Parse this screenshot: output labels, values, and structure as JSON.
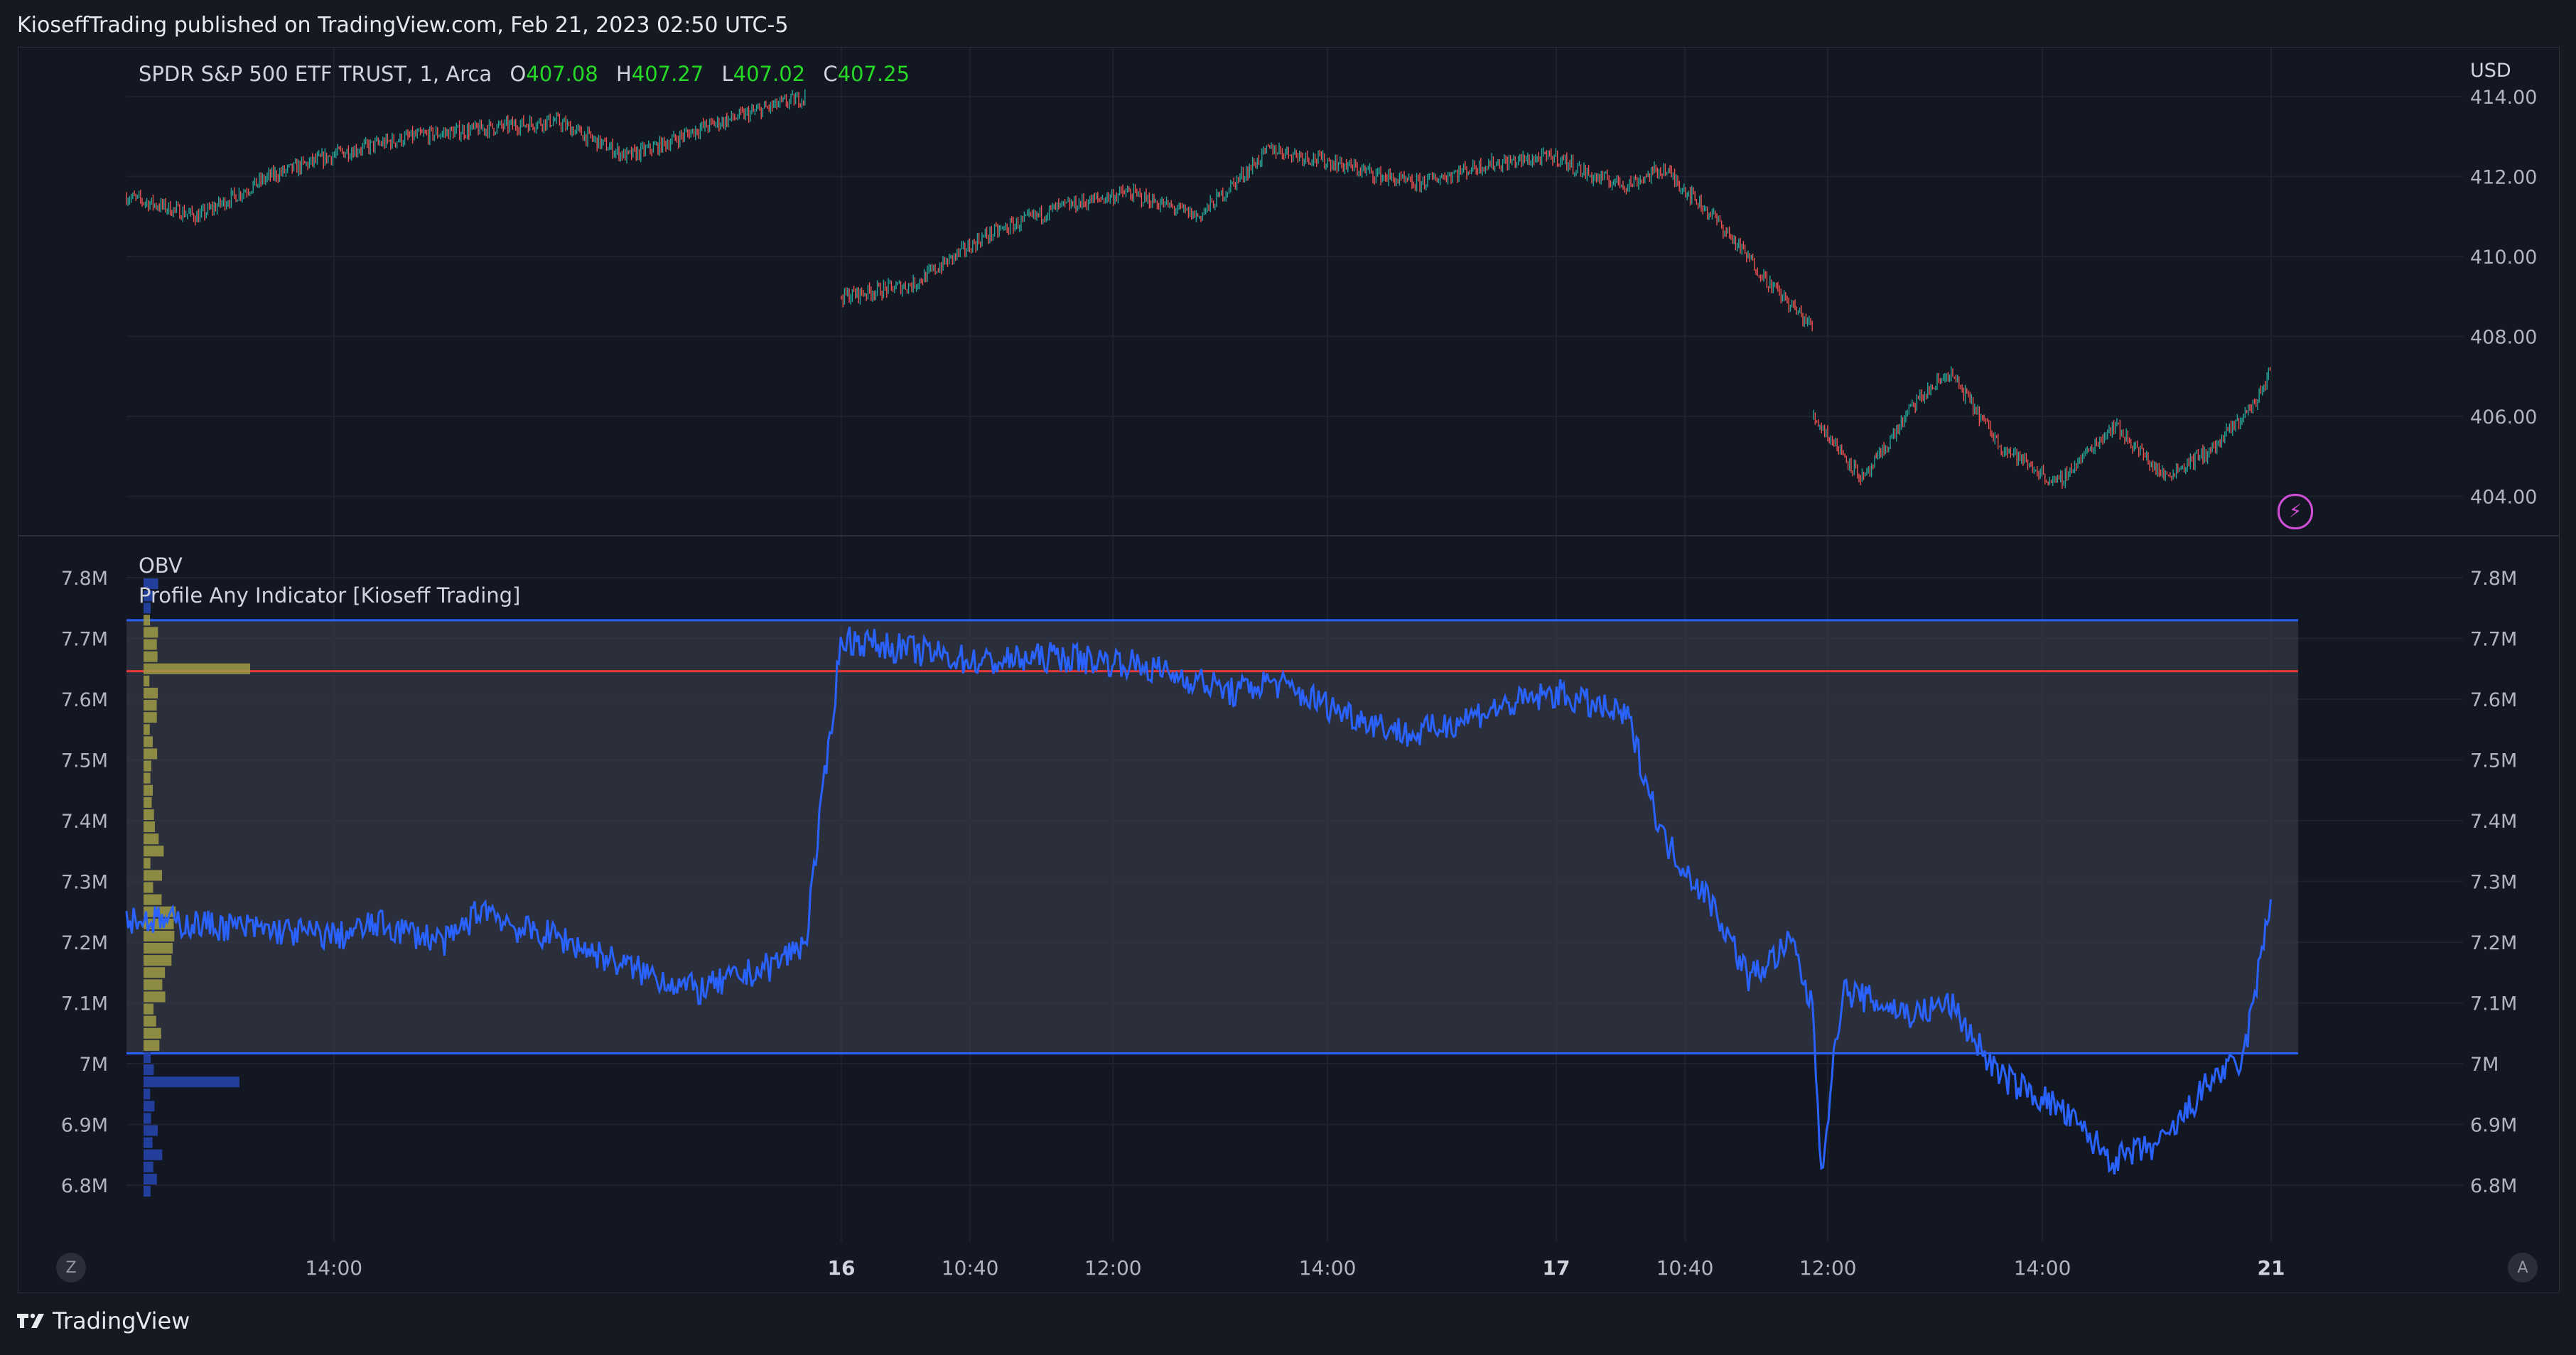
{
  "header": {
    "published": "KioseffTrading published on TradingView.com, Feb 21, 2023 02:50 UTC-5"
  },
  "price_pane": {
    "symbol": "SPDR S&P 500 ETF TRUST, 1, Arca",
    "ohlc": {
      "o_label": "O",
      "o": "407.08",
      "h_label": "H",
      "h": "407.27",
      "l_label": "L",
      "l": "407.02",
      "c_label": "C",
      "c": "407.25"
    },
    "currency": "USD",
    "up_color": "#26a69a",
    "down_color": "#ef5350"
  },
  "indicator_pane": {
    "title": "OBV",
    "subtitle": "Profile Any Indicator [Kioseff Trading]",
    "line_color": "#2962ff",
    "poc_color": "#e53935",
    "value_area_color": "#9e9a44"
  },
  "bottom": {
    "brand": "TradingView",
    "z_label": "Z",
    "a_label": "A"
  },
  "chart_data": [
    {
      "type": "line",
      "title": "SPDR S&P 500 ETF TRUST, 1, Arca",
      "ylabel": "USD",
      "ylim": [
        403.0,
        414.5
      ],
      "yticks": [
        "414.00",
        "412.00",
        "410.00",
        "408.00",
        "406.00",
        "404.00"
      ],
      "xticks": [
        "14:00",
        "16",
        "10:40",
        "12:00",
        "14:00",
        "17",
        "10:40",
        "12:00",
        "14:00",
        "21"
      ],
      "xlim": [
        0,
        3
      ],
      "series": [
        {
          "values_x": [
            0.0,
            0.1,
            0.2,
            0.3,
            0.4,
            0.5,
            0.6,
            0.7,
            0.75,
            0.8,
            0.95
          ],
          "values": [
            411.5,
            411.0,
            412.0,
            412.6,
            413.0,
            413.2,
            413.4,
            412.5,
            412.8,
            413.2,
            414.0
          ]
        },
        {
          "values_x": [
            1.0,
            1.1,
            1.2,
            1.3,
            1.4,
            1.5,
            1.6,
            1.7,
            1.8,
            1.9,
            2.0,
            2.05,
            2.1,
            2.15,
            2.22,
            2.3,
            2.36
          ],
          "values": [
            409.0,
            409.3,
            410.5,
            411.2,
            411.6,
            411.0,
            412.7,
            412.3,
            411.8,
            412.3,
            412.5,
            412.0,
            411.8,
            412.2,
            411.0,
            409.3,
            408.2
          ]
        },
        {
          "values_x": [
            2.36,
            2.43,
            2.5,
            2.55,
            2.62,
            2.7,
            2.78,
            2.85,
            2.92,
            2.98,
            3.0
          ],
          "values": [
            406.0,
            404.4,
            406.3,
            407.1,
            405.3,
            404.3,
            405.8,
            404.5,
            405.2,
            406.4,
            407.2
          ]
        }
      ]
    },
    {
      "type": "line",
      "title": "OBV",
      "ylim": [
        6.77,
        7.8
      ],
      "yticks": [
        "7.8M",
        "7.7M",
        "7.6M",
        "7.5M",
        "7.4M",
        "7.3M",
        "7.2M",
        "7.1M",
        "7M",
        "6.9M",
        "6.8M"
      ],
      "xticks": [
        "14:00",
        "16",
        "10:40",
        "12:00",
        "14:00",
        "17",
        "10:40",
        "12:00",
        "14:00",
        "21"
      ],
      "xlim": [
        0,
        3
      ],
      "value_area": {
        "high": 7.73,
        "low": 7.017,
        "poc": 7.646
      },
      "series": [
        {
          "name": "OBV",
          "values_x": [
            0.0,
            0.1,
            0.2,
            0.3,
            0.35,
            0.45,
            0.5,
            0.55,
            0.6,
            0.7,
            0.8,
            0.9,
            0.95,
            1.0,
            1.1,
            1.2,
            1.3,
            1.4,
            1.5,
            1.55,
            1.6,
            1.7,
            1.8,
            1.9,
            2.0,
            2.1,
            2.15,
            2.22,
            2.27,
            2.33,
            2.36,
            2.37,
            2.4,
            2.5,
            2.55,
            2.62,
            2.7,
            2.78,
            2.85,
            2.92,
            2.96,
            3.0
          ],
          "values": [
            7.24,
            7.23,
            7.22,
            7.21,
            7.23,
            7.2,
            7.26,
            7.22,
            7.21,
            7.16,
            7.12,
            7.16,
            7.2,
            7.7,
            7.68,
            7.66,
            7.67,
            7.66,
            7.63,
            7.61,
            7.63,
            7.58,
            7.54,
            7.58,
            7.61,
            7.57,
            7.37,
            7.26,
            7.14,
            7.2,
            7.08,
            6.82,
            7.12,
            7.08,
            7.1,
            6.98,
            6.93,
            6.84,
            6.87,
            6.98,
            7.0,
            7.27
          ]
        }
      ]
    }
  ]
}
